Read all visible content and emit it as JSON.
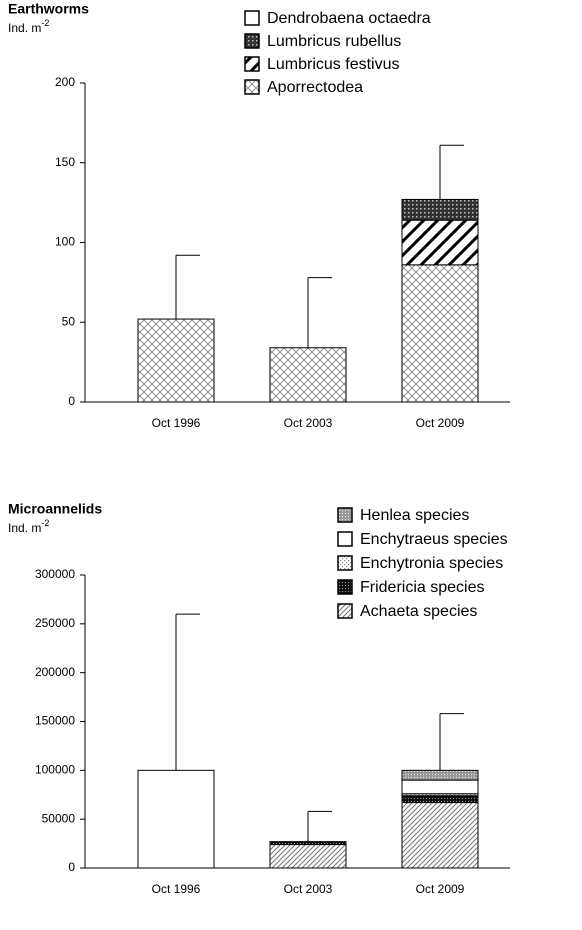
{
  "chart_data": [
    {
      "type": "bar",
      "stacked": true,
      "title": "Earthworms",
      "y_label": "Ind. m",
      "y_label_sup": "-2",
      "categories": [
        "Oct 1996",
        "Oct 2003",
        "Oct 2009"
      ],
      "series": [
        {
          "name": "Aporrectodea",
          "pattern": "crosshatch",
          "values": [
            52,
            34,
            86
          ]
        },
        {
          "name": "Lumbricus festivus",
          "pattern": "diagonal",
          "values": [
            0,
            0,
            28
          ]
        },
        {
          "name": "Lumbricus rubellus",
          "pattern": "darkcheck",
          "values": [
            0,
            0,
            13
          ]
        },
        {
          "name": "Dendrobaena octaedra",
          "pattern": "white",
          "values": [
            0,
            0,
            0
          ]
        }
      ],
      "errors": [
        40,
        44,
        34
      ],
      "ylim": [
        0,
        200
      ],
      "yticks": [
        0,
        50,
        100,
        150,
        200
      ]
    },
    {
      "type": "bar",
      "stacked": true,
      "title": "Microannelids",
      "y_label": "Ind. m",
      "y_label_sup": "-2",
      "categories": [
        "Oct 1996",
        "Oct 2003",
        "Oct 2009"
      ],
      "series": [
        {
          "name": "Achaeta species",
          "pattern": "finediag",
          "values": [
            0,
            24000,
            67000
          ]
        },
        {
          "name": "Fridericia species",
          "pattern": "blackdots",
          "values": [
            0,
            3000,
            7000
          ]
        },
        {
          "name": "Enchytronia species",
          "pattern": "dots",
          "values": [
            0,
            0,
            2000
          ]
        },
        {
          "name": "Enchytraeus species",
          "pattern": "white",
          "values": [
            100000,
            0,
            14000
          ]
        },
        {
          "name": "Henlea species",
          "pattern": "graydots",
          "values": [
            0,
            0,
            10000
          ]
        }
      ],
      "errors": [
        160000,
        31000,
        58000
      ],
      "ylim": [
        0,
        300000
      ],
      "yticks": [
        0,
        50000,
        100000,
        150000,
        200000,
        250000,
        300000
      ]
    }
  ]
}
